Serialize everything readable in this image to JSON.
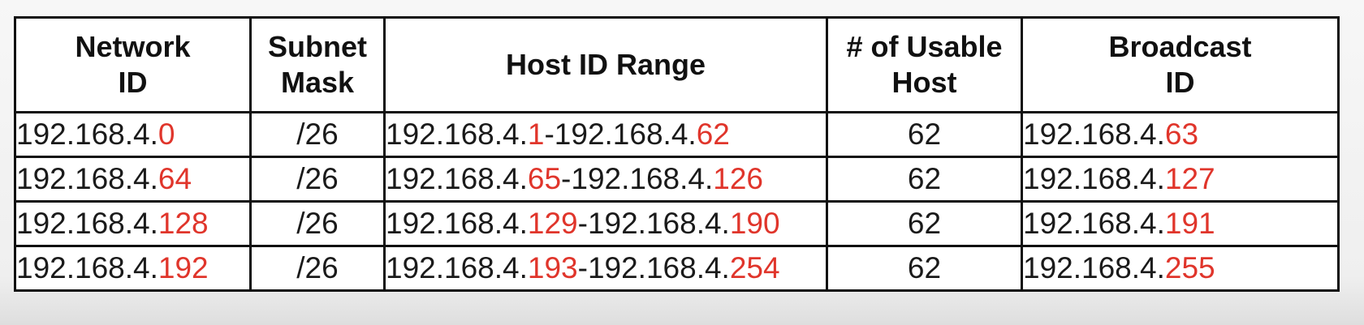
{
  "headers": {
    "network_id": [
      "Network",
      "ID"
    ],
    "subnet_mask": [
      "Subnet",
      "Mask"
    ],
    "host_range": "Host ID Range",
    "usable_hosts": [
      "# of Usable",
      "Host"
    ],
    "broadcast_id": [
      "Broadcast",
      "ID"
    ]
  },
  "rows": [
    {
      "network_prefix": "192.168.4.",
      "network_octet": "0",
      "mask": "/26",
      "range_start_prefix": "192.168.4.",
      "range_start_octet": "1",
      "range_sep": "-",
      "range_end_prefix": "192.168.4.",
      "range_end_octet": "62",
      "usable": "62",
      "broadcast_prefix": "192.168.4.",
      "broadcast_octet": "63"
    },
    {
      "network_prefix": "192.168.4.",
      "network_octet": "64",
      "mask": "/26",
      "range_start_prefix": "192.168.4.",
      "range_start_octet": "65",
      "range_sep": "-",
      "range_end_prefix": "192.168.4.",
      "range_end_octet": "126",
      "usable": "62",
      "broadcast_prefix": "192.168.4.",
      "broadcast_octet": "127"
    },
    {
      "network_prefix": "192.168.4.",
      "network_octet": "128",
      "mask": "/26",
      "range_start_prefix": "192.168.4.",
      "range_start_octet": "129",
      "range_sep": "-",
      "range_end_prefix": "192.168.4.",
      "range_end_octet": "190",
      "usable": "62",
      "broadcast_prefix": "192.168.4.",
      "broadcast_octet": "191"
    },
    {
      "network_prefix": "192.168.4.",
      "network_octet": "192",
      "mask": "/26",
      "range_start_prefix": "192.168.4.",
      "range_start_octet": "193",
      "range_sep": "-",
      "range_end_prefix": "192.168.4.",
      "range_end_octet": "254",
      "usable": "62",
      "broadcast_prefix": "192.168.4.",
      "broadcast_octet": "255"
    }
  ],
  "colors": {
    "highlight": "#e0352b",
    "text": "#1a1a1a",
    "border": "#111111"
  }
}
